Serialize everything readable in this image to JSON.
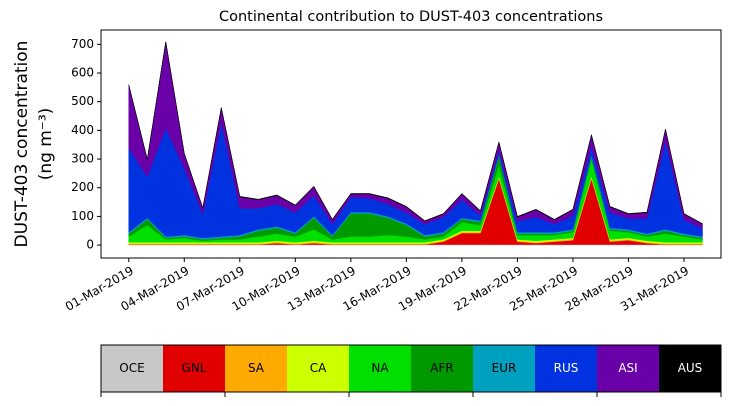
{
  "chart_data": {
    "type": "stacked_area",
    "title": "Continental contribution to DUST-403 concentrations",
    "ylabel": [
      "DUST-403 concentration",
      "(ng m⁻³)"
    ],
    "x": [
      "2019-03-01",
      "2019-03-02",
      "2019-03-03",
      "2019-03-04",
      "2019-03-05",
      "2019-03-06",
      "2019-03-07",
      "2019-03-08",
      "2019-03-09",
      "2019-03-10",
      "2019-03-11",
      "2019-03-12",
      "2019-03-13",
      "2019-03-14",
      "2019-03-15",
      "2019-03-16",
      "2019-03-17",
      "2019-03-18",
      "2019-03-19",
      "2019-03-20",
      "2019-03-21",
      "2019-03-22",
      "2019-03-23",
      "2019-03-24",
      "2019-03-25",
      "2019-03-26",
      "2019-03-27",
      "2019-03-28",
      "2019-03-29",
      "2019-03-30",
      "2019-03-31",
      "2019-04-01"
    ],
    "xlim": [
      "2019-02-27T12:00Z",
      "2019-04-02T00:00Z"
    ],
    "xticks": [
      {
        "value": "2019-03-01",
        "label": "01-Mar-2019"
      },
      {
        "value": "2019-03-04",
        "label": "04-Mar-2019"
      },
      {
        "value": "2019-03-07",
        "label": "07-Mar-2019"
      },
      {
        "value": "2019-03-10",
        "label": "10-Mar-2019"
      },
      {
        "value": "2019-03-13",
        "label": "13-Mar-2019"
      },
      {
        "value": "2019-03-16",
        "label": "16-Mar-2019"
      },
      {
        "value": "2019-03-19",
        "label": "19-Mar-2019"
      },
      {
        "value": "2019-03-22",
        "label": "22-Mar-2019"
      },
      {
        "value": "2019-03-25",
        "label": "25-Mar-2019"
      },
      {
        "value": "2019-03-28",
        "label": "28-Mar-2019"
      },
      {
        "value": "2019-03-31",
        "label": "31-Mar-2019"
      }
    ],
    "ylim": [
      -45,
      750
    ],
    "yticks": [
      0,
      100,
      200,
      300,
      400,
      500,
      600,
      700
    ],
    "series": [
      {
        "name": "OCE",
        "color": "#c8c8c8",
        "values": [
          2,
          2,
          2,
          2,
          2,
          2,
          2,
          2,
          2,
          2,
          2,
          2,
          2,
          2,
          2,
          2,
          2,
          2,
          2,
          2,
          2,
          2,
          2,
          2,
          2,
          2,
          2,
          2,
          2,
          2,
          2,
          2
        ]
      },
      {
        "name": "GNL",
        "color": "#e00000",
        "values": [
          0,
          0,
          0,
          0,
          0,
          0,
          0,
          0,
          5,
          0,
          5,
          0,
          0,
          0,
          0,
          0,
          0,
          10,
          40,
          40,
          230,
          10,
          5,
          10,
          15,
          230,
          10,
          15,
          5,
          0,
          0,
          0
        ]
      },
      {
        "name": "SA",
        "color": "#ffaa00",
        "values": [
          3,
          3,
          3,
          3,
          3,
          3,
          3,
          3,
          3,
          3,
          3,
          3,
          3,
          3,
          3,
          3,
          3,
          3,
          3,
          3,
          3,
          3,
          3,
          3,
          3,
          3,
          3,
          3,
          3,
          3,
          3,
          3
        ]
      },
      {
        "name": "CA",
        "color": "#ccff00",
        "values": [
          5,
          5,
          5,
          5,
          5,
          5,
          5,
          5,
          5,
          5,
          5,
          5,
          5,
          5,
          5,
          5,
          5,
          5,
          5,
          5,
          5,
          5,
          5,
          5,
          5,
          5,
          5,
          5,
          5,
          5,
          5,
          5
        ]
      },
      {
        "name": "NA",
        "color": "#00e000",
        "values": [
          20,
          60,
          10,
          15,
          5,
          10,
          10,
          20,
          25,
          20,
          40,
          10,
          20,
          20,
          25,
          20,
          10,
          10,
          30,
          20,
          40,
          15,
          20,
          15,
          20,
          60,
          30,
          20,
          15,
          30,
          20,
          10
        ]
      },
      {
        "name": "AFR",
        "color": "#009a00",
        "values": [
          10,
          20,
          5,
          5,
          5,
          5,
          10,
          20,
          20,
          10,
          40,
          10,
          80,
          80,
          60,
          40,
          10,
          10,
          10,
          10,
          30,
          5,
          5,
          5,
          5,
          10,
          5,
          5,
          5,
          10,
          5,
          5
        ]
      },
      {
        "name": "EUR",
        "color": "#00a0c0",
        "values": [
          5,
          5,
          5,
          5,
          5,
          5,
          5,
          5,
          5,
          5,
          5,
          5,
          5,
          5,
          5,
          5,
          5,
          5,
          5,
          5,
          5,
          5,
          5,
          5,
          5,
          5,
          5,
          5,
          5,
          5,
          5,
          5
        ]
      },
      {
        "name": "RUS",
        "color": "#0032e0",
        "values": [
          293,
          143,
          378,
          233,
          83,
          398,
          93,
          73,
          78,
          68,
          73,
          38,
          53,
          48,
          43,
          38,
          38,
          53,
          63,
          18,
          13,
          38,
          53,
          28,
          48,
          28,
          53,
          38,
          53,
          308,
          48,
          28
        ]
      },
      {
        "name": "ASI",
        "color": "#6a00a8",
        "values": [
          220,
          60,
          300,
          50,
          20,
          50,
          40,
          30,
          30,
          25,
          30,
          15,
          10,
          15,
          20,
          20,
          10,
          10,
          20,
          15,
          30,
          15,
          25,
          15,
          20,
          40,
          20,
          15,
          20,
          40,
          20,
          15
        ]
      },
      {
        "name": "AUS",
        "color": "#000000",
        "values": [
          2,
          2,
          2,
          2,
          2,
          2,
          2,
          2,
          2,
          2,
          2,
          2,
          2,
          2,
          2,
          2,
          2,
          2,
          2,
          2,
          2,
          2,
          2,
          2,
          2,
          2,
          2,
          2,
          2,
          2,
          2,
          2
        ]
      }
    ]
  }
}
